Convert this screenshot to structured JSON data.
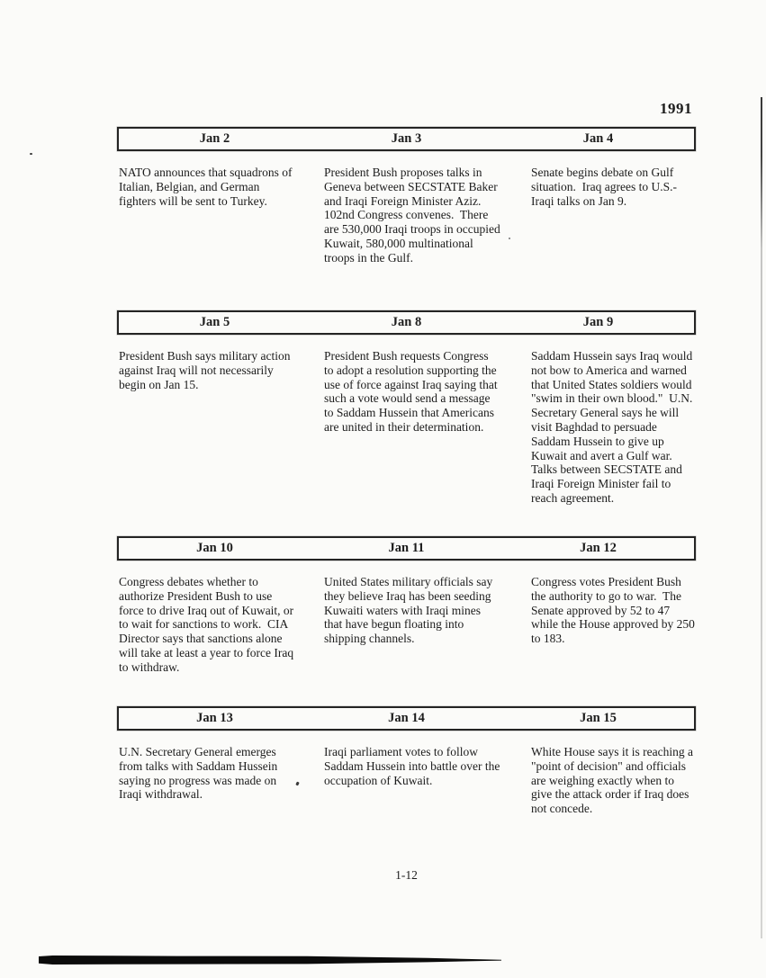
{
  "page": {
    "year": "1991",
    "page_number": "1-12"
  },
  "sections": [
    {
      "dates": [
        "Jan 2",
        "Jan 3",
        "Jan 4"
      ],
      "entries": [
        "NATO announces that squadrons of Italian, Belgian, and German fighters will be sent to Turkey.",
        "President Bush proposes talks in Geneva between SECSTATE Baker and Iraqi Foreign Minister Aziz.  102nd Congress convenes.  There are 530,000 Iraqi troops in occupied Kuwait, 580,000 multinational troops in the Gulf.",
        "Senate begins debate on Gulf situation.  Iraq agrees to U.S.-Iraqi talks on Jan 9."
      ]
    },
    {
      "dates": [
        "Jan 5",
        "Jan 8",
        "Jan 9"
      ],
      "entries": [
        "President Bush says military action against Iraq will not necessarily begin on Jan 15.",
        "President Bush requests Congress to adopt a resolution supporting the use of force against Iraq saying that such a vote would send a message to Saddam Hussein that Americans are united in their determination.",
        "Saddam Hussein says Iraq would not bow to America and warned that United States soldiers would \"swim in their own blood.\"  U.N. Secretary General says he will visit Baghdad to persuade Saddam Hussein to give up Kuwait and avert a Gulf war.  Talks between SECSTATE and Iraqi Foreign Minister fail to reach agreement."
      ]
    },
    {
      "dates": [
        "Jan 10",
        "Jan 11",
        "Jan 12"
      ],
      "entries": [
        "Congress debates whether to authorize President Bush to use force to drive Iraq out of Kuwait, or to wait for sanctions to work.  CIA Director says that sanctions alone will take at least a year to force Iraq to withdraw.",
        "United States military officials say they believe Iraq has been seeding Kuwaiti waters with Iraqi mines that have begun floating into shipping channels.",
        "Congress votes President Bush the authority to go to war.  The Senate approved by 52 to 47 while the House approved by 250 to 183."
      ]
    },
    {
      "dates": [
        "Jan 13",
        "Jan 14",
        "Jan 15"
      ],
      "entries": [
        "U.N. Secretary General emerges from talks with Saddam Hussein saying no progress was made on Iraqi withdrawal.",
        "Iraqi parliament votes to follow Saddam Hussein into battle over the occupation of Kuwait.",
        "White House says it is reaching a \"point of decision\" and officials are weighing exactly when to give the attack order if Iraq does not concede."
      ]
    }
  ]
}
